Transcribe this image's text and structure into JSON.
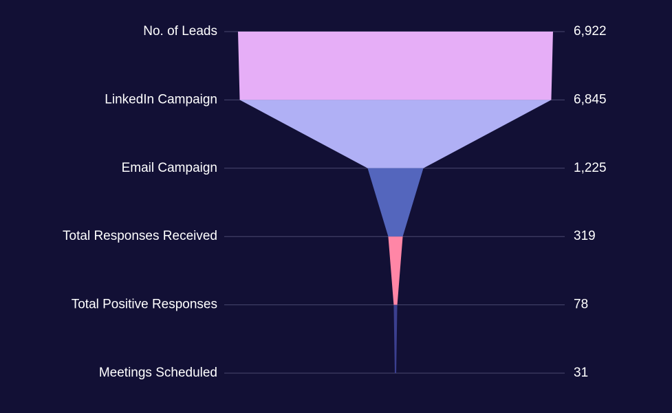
{
  "chart_data": {
    "type": "funnel",
    "title": "",
    "stages": [
      {
        "label": "No. of Leads",
        "value": 6922,
        "value_label": "6,922",
        "color": "#e6aef7"
      },
      {
        "label": "LinkedIn Campaign",
        "value": 6845,
        "value_label": "6,845",
        "color": "#b0b0f5"
      },
      {
        "label": "Email Campaign",
        "value": 1225,
        "value_label": "1,225",
        "color": "#5466bd"
      },
      {
        "label": "Total Responses Received",
        "value": 319,
        "value_label": "319",
        "color": "#ff86a6"
      },
      {
        "label": "Total Positive Responses",
        "value": 78,
        "value_label": "78",
        "color": "#3b3f8f"
      },
      {
        "label": "Meetings Scheduled",
        "value": 31,
        "value_label": "31",
        "color": "#3b3f8f"
      }
    ]
  },
  "colors": {
    "background": "#121035",
    "gridline": "#4a4970",
    "text": "#ffffff"
  }
}
